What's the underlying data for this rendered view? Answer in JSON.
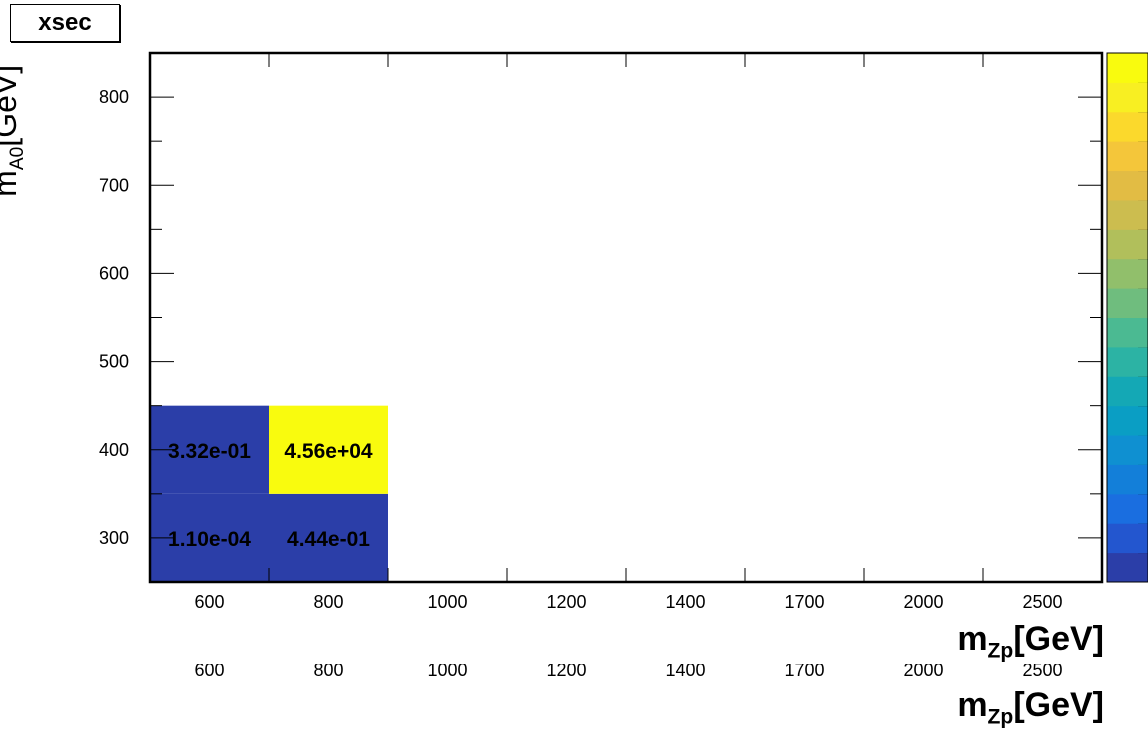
{
  "title": "xsec",
  "chart_data": {
    "type": "heatmap",
    "title": "xsec",
    "xlabel_main": "m",
    "xlabel_sub": "Zp",
    "xlabel_unit": "[GeV]",
    "ylabel_main": "m",
    "ylabel_sub": "A0",
    "ylabel_unit": "[GeV]",
    "x_categories": [
      "600",
      "800",
      "1000",
      "1200",
      "1400",
      "1700",
      "2000",
      "2500"
    ],
    "y_range": [
      250,
      850
    ],
    "y_ticks": [
      300,
      400,
      500,
      600,
      700,
      800
    ],
    "y_bins": [
      [
        250,
        350
      ],
      [
        350,
        450
      ]
    ],
    "cells": [
      {
        "x": "600",
        "y": 300,
        "value": 0.00011,
        "label": "1.10e-04"
      },
      {
        "x": "800",
        "y": 300,
        "value": 0.444,
        "label": "4.44e-01"
      },
      {
        "x": "600",
        "y": 400,
        "value": 0.332,
        "label": "3.32e-01"
      },
      {
        "x": "800",
        "y": 400,
        "value": 45600,
        "label": "4.56e+04"
      }
    ],
    "palette": [
      "#2b3ea8",
      "#2356cf",
      "#1a6ee0",
      "#137fd9",
      "#0f90d1",
      "#0a9ec4",
      "#14a8b5",
      "#2cb3a4",
      "#4bba92",
      "#6fbd7e",
      "#91bf6b",
      "#b1bf5b",
      "#ccbd4f",
      "#e2bc44",
      "#f4c63a",
      "#fbd92c",
      "#f8ef22",
      "#f9fb0e"
    ],
    "cell_colors": {
      "low": "#2b3ea8",
      "high": "#f9fb0e"
    },
    "grid": false,
    "legend_position": "right"
  }
}
